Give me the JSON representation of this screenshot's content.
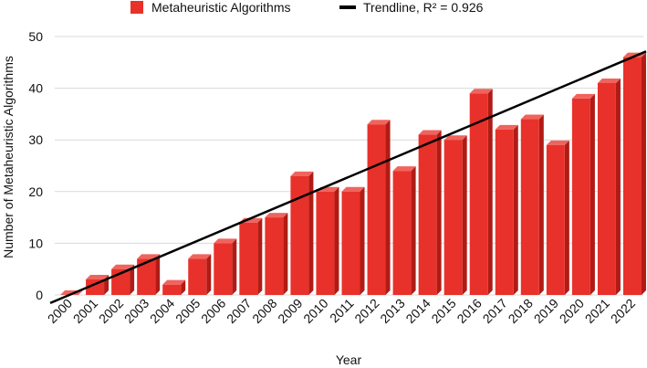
{
  "chart_data": {
    "type": "bar",
    "categories": [
      "2000",
      "2001",
      "2002",
      "2003",
      "2004",
      "2005",
      "2006",
      "2007",
      "2008",
      "2009",
      "2010",
      "2011",
      "2012",
      "2013",
      "2014",
      "2015",
      "2016",
      "2017",
      "2018",
      "2019",
      "2020",
      "2021",
      "2022"
    ],
    "series": [
      {
        "name": "Metaheuristic Algorithms",
        "color": "#e8312a",
        "values": [
          0,
          3,
          5,
          7,
          2,
          7,
          10,
          14,
          15,
          23,
          20,
          20,
          33,
          24,
          31,
          30,
          39,
          32,
          34,
          29,
          38,
          41,
          46
        ]
      }
    ],
    "trendline": {
      "name": "Trendline, R² = 0.926",
      "color": "#000000",
      "start": {
        "x": "2000",
        "y": 0
      },
      "end": {
        "x": "2022",
        "y": 46
      }
    },
    "xlabel": "Year",
    "ylabel": "Number of Metaheuristic Algorithms",
    "ylim": [
      0,
      50
    ],
    "yticks": [
      0,
      10,
      20,
      30,
      40,
      50
    ],
    "grid": true,
    "legend_position": "top-center",
    "style": "3d-bars"
  }
}
